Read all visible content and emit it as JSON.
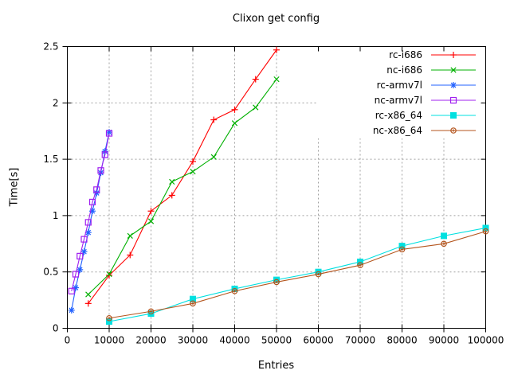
{
  "title": "Clixon get config",
  "chart_data": {
    "type": "line",
    "title": "Clixon get config",
    "xlabel": "Entries",
    "ylabel": "Time[s]",
    "xlim": [
      0,
      100000
    ],
    "ylim": [
      0,
      2.5
    ],
    "grid": true,
    "legend_position": "top-right-inside",
    "xticks": [
      0,
      10000,
      20000,
      30000,
      40000,
      50000,
      60000,
      70000,
      80000,
      90000,
      100000
    ],
    "xtick_labels": [
      "0",
      "10000",
      "20000",
      "30000",
      "40000",
      "50000",
      "60000",
      "70000",
      "80000",
      "90000",
      "100000"
    ],
    "yticks": [
      0,
      0.5,
      1,
      1.5,
      2,
      2.5
    ],
    "ytick_labels": [
      "0",
      "0.5",
      "1",
      "1.5",
      "2",
      "2.5"
    ],
    "grid_color": "#a0a0a0",
    "border_color": "#000000",
    "series": [
      {
        "name": "rc-i686",
        "color": "#ff0000",
        "marker": "plus",
        "x": [
          5000,
          10000,
          15000,
          20000,
          25000,
          30000,
          35000,
          40000,
          45000,
          50000
        ],
        "y": [
          0.22,
          0.47,
          0.65,
          1.04,
          1.18,
          1.48,
          1.85,
          1.94,
          2.21,
          2.47
        ]
      },
      {
        "name": "nc-i686",
        "color": "#00b000",
        "marker": "cross",
        "x": [
          5000,
          10000,
          15000,
          20000,
          25000,
          30000,
          35000,
          40000,
          45000,
          50000
        ],
        "y": [
          0.3,
          0.48,
          0.82,
          0.95,
          1.3,
          1.39,
          1.52,
          1.82,
          1.96,
          2.21
        ]
      },
      {
        "name": "rc-armv7l",
        "color": "#2060ff",
        "marker": "asterisk",
        "x": [
          1000,
          2000,
          3000,
          4000,
          5000,
          6000,
          7000,
          8000,
          9000,
          10000
        ],
        "y": [
          0.16,
          0.36,
          0.52,
          0.68,
          0.85,
          1.04,
          1.2,
          1.38,
          1.57,
          1.74
        ]
      },
      {
        "name": "nc-armv7l",
        "color": "#a020f0",
        "marker": "square-open",
        "x": [
          1000,
          2000,
          3000,
          4000,
          5000,
          6000,
          7000,
          8000,
          9000,
          10000
        ],
        "y": [
          0.33,
          0.48,
          0.64,
          0.79,
          0.94,
          1.12,
          1.23,
          1.4,
          1.54,
          1.73
        ]
      },
      {
        "name": "rc-x86_64",
        "color": "#00e0e0",
        "marker": "square-filled",
        "x": [
          10000,
          20000,
          30000,
          40000,
          50000,
          60000,
          70000,
          80000,
          90000,
          100000
        ],
        "y": [
          0.06,
          0.13,
          0.26,
          0.35,
          0.43,
          0.5,
          0.59,
          0.73,
          0.82,
          0.89
        ]
      },
      {
        "name": "nc-x86_64",
        "color": "#b4551d",
        "marker": "circle-open",
        "x": [
          10000,
          20000,
          30000,
          40000,
          50000,
          60000,
          70000,
          80000,
          90000,
          100000
        ],
        "y": [
          0.09,
          0.15,
          0.22,
          0.33,
          0.41,
          0.48,
          0.56,
          0.7,
          0.75,
          0.86
        ]
      }
    ]
  }
}
